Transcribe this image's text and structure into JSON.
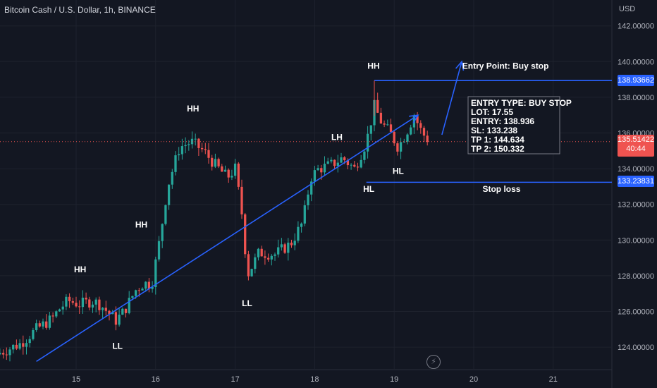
{
  "header": {
    "symbol_title": "Bitcoin Cash / U.S. Dollar, 1h, BINANCE"
  },
  "colors": {
    "background": "#131722",
    "up": "#26a69a",
    "down": "#ef5350",
    "drawing": "#2962ff",
    "text": "#d1d4dc"
  },
  "price_tags": {
    "entry": "138.93662",
    "current": "135.51422",
    "countdown": "40:44",
    "stop": "133.23831"
  },
  "icons": {
    "replay": "flash-icon"
  },
  "chart_data": {
    "type": "candlestick",
    "currency": "USD",
    "y_ticks": [
      "142.00000",
      "140.00000",
      "138.00000",
      "136.00000",
      "134.00000",
      "132.00000",
      "130.00000",
      "128.00000",
      "126.00000",
      "124.00000"
    ],
    "x_ticks": [
      "15",
      "16",
      "17",
      "18",
      "19",
      "20",
      "21"
    ],
    "ylim": [
      122.8,
      143.3
    ],
    "grid": true,
    "price_path": [
      [
        14.0,
        123.6
      ],
      [
        14.3,
        124.2
      ],
      [
        14.5,
        125.0
      ],
      [
        14.7,
        125.6
      ],
      [
        14.8,
        126.2
      ],
      [
        14.9,
        126.6
      ],
      [
        15.05,
        126.4
      ],
      [
        15.2,
        126.6
      ],
      [
        15.3,
        126.4
      ],
      [
        15.5,
        125.5
      ],
      [
        15.6,
        126.0
      ],
      [
        15.75,
        127.2
      ],
      [
        15.85,
        127.6
      ],
      [
        15.95,
        127.5
      ],
      [
        16.05,
        130.0
      ],
      [
        16.15,
        133.0
      ],
      [
        16.3,
        135.2
      ],
      [
        16.45,
        135.5
      ],
      [
        16.6,
        135.0
      ],
      [
        16.75,
        134.2
      ],
      [
        16.9,
        133.5
      ],
      [
        17.0,
        134.0
      ],
      [
        17.1,
        131.0
      ],
      [
        17.15,
        128.0
      ],
      [
        17.3,
        129.3
      ],
      [
        17.5,
        129.2
      ],
      [
        17.7,
        129.8
      ],
      [
        17.85,
        131.0
      ],
      [
        17.95,
        133.5
      ],
      [
        18.05,
        134.0
      ],
      [
        18.2,
        134.2
      ],
      [
        18.35,
        134.6
      ],
      [
        18.5,
        134.0
      ],
      [
        18.65,
        135.5
      ],
      [
        18.75,
        137.5
      ],
      [
        18.85,
        136.5
      ],
      [
        18.95,
        136.0
      ],
      [
        19.05,
        135.2
      ],
      [
        19.15,
        136.0
      ],
      [
        19.25,
        137.0
      ],
      [
        19.35,
        136.0
      ],
      [
        19.45,
        135.5
      ]
    ],
    "candle_hours": 1,
    "trendlines": [
      {
        "from": [
          14.5,
          123.2
        ],
        "to": [
          19.3,
          137.0
        ],
        "arrow": true
      },
      {
        "from": [
          19.6,
          135.9
        ],
        "to": [
          19.85,
          140.0
        ],
        "arrow": true
      }
    ],
    "horizontal_levels": [
      {
        "name": "Entry Point: Buy stop",
        "value": 138.93662,
        "from_x": 18.75
      },
      {
        "name": "Stop loss",
        "value": 133.23831,
        "from_x": 18.65
      }
    ],
    "current_price": 135.51422,
    "swing_labels": [
      {
        "text": "HH",
        "x": 15.05,
        "y": 128.2
      },
      {
        "text": "LL",
        "x": 15.52,
        "y": 123.9
      },
      {
        "text": "HH",
        "x": 15.82,
        "y": 130.7
      },
      {
        "text": "HH",
        "x": 16.47,
        "y": 137.2
      },
      {
        "text": "LL",
        "x": 17.15,
        "y": 126.3
      },
      {
        "text": "LH",
        "x": 18.28,
        "y": 135.6
      },
      {
        "text": "HL",
        "x": 18.68,
        "y": 132.7
      },
      {
        "text": "HH",
        "x": 18.74,
        "y": 139.6
      },
      {
        "text": "HL",
        "x": 19.05,
        "y": 133.7
      }
    ],
    "level_labels": [
      {
        "text": "Entry Point: Buy stop",
        "x": 20.4,
        "y": 139.6
      },
      {
        "text": "Stop loss",
        "x": 20.35,
        "y": 132.7
      }
    ],
    "info_box": {
      "lines": [
        "ENTRY TYPE: BUY STOP",
        "LOT: 17.55",
        "ENTRY: 138.936",
        "SL: 133.238",
        "TP 1: 144.634",
        "TP 2: 150.332"
      ]
    }
  }
}
